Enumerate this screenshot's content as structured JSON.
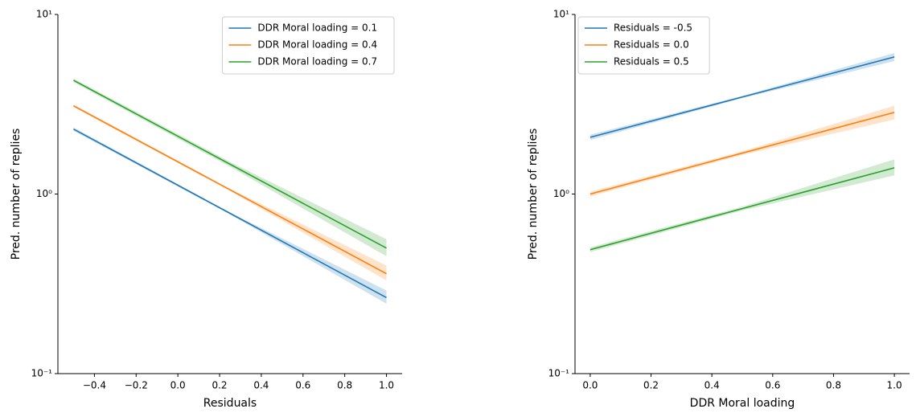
{
  "chart_data": [
    {
      "type": "line",
      "log_y": true,
      "legend": "upper right",
      "x_label": "Residuals",
      "y_label": "Pred. number of replies",
      "x": [
        -0.5,
        0.25,
        1.0
      ],
      "series": [
        {
          "name": "DDR Moral loading = 0.1",
          "color": "#1f77b4",
          "values": [
            2.3,
            0.781,
            0.265
          ],
          "lower": [
            2.25,
            0.77,
            0.245
          ],
          "upper": [
            2.35,
            0.79,
            0.29
          ]
        },
        {
          "name": "DDR Moral loading = 0.4",
          "color": "#ff7f0e",
          "values": [
            3.1,
            1.056,
            0.36
          ],
          "lower": [
            3.05,
            1.04,
            0.33
          ],
          "upper": [
            3.15,
            1.07,
            0.4
          ]
        },
        {
          "name": "DDR Moral loading = 0.7",
          "color": "#2ca02c",
          "values": [
            4.3,
            1.466,
            0.5
          ],
          "lower": [
            4.2,
            1.42,
            0.45
          ],
          "upper": [
            4.4,
            1.51,
            0.56
          ]
        }
      ],
      "xlim": [
        -0.575,
        1.075
      ],
      "xticks": [
        {
          "value": -0.4,
          "label": "−0.4"
        },
        {
          "value": -0.2,
          "label": "−0.2"
        },
        {
          "value": 0,
          "label": "0.0"
        },
        0.2,
        0.4,
        0.6,
        0.8,
        {
          "value": 1,
          "label": "1.0"
        }
      ],
      "ylim": [
        0.1,
        10
      ],
      "yticks": [
        {
          "value": 0.1,
          "label": "10⁻¹"
        },
        {
          "value": 1,
          "label": "10⁰"
        },
        {
          "value": 10,
          "label": "10¹"
        }
      ]
    },
    {
      "type": "line",
      "log_y": true,
      "legend": "upper left",
      "x_label": "DDR Moral loading",
      "y_label": "Pred. number of replies",
      "x": [
        0,
        0.5,
        1
      ],
      "series": [
        {
          "name": "Residuals = -0.5",
          "color": "#1f77b4",
          "values": [
            2.07,
            3.47,
            5.8
          ],
          "lower": [
            2.0,
            3.42,
            5.5
          ],
          "upper": [
            2.14,
            3.52,
            6.1
          ]
        },
        {
          "name": "Residuals = 0.0",
          "color": "#ff7f0e",
          "values": [
            1.0,
            1.69,
            2.85
          ],
          "lower": [
            0.97,
            1.65,
            2.6
          ],
          "upper": [
            1.03,
            1.73,
            3.1
          ]
        },
        {
          "name": "Residuals = 0.5",
          "color": "#2ca02c",
          "values": [
            0.49,
            0.83,
            1.4
          ],
          "lower": [
            0.475,
            0.81,
            1.27
          ],
          "upper": [
            0.505,
            0.85,
            1.56
          ]
        }
      ],
      "xlim": [
        -0.05,
        1.05
      ],
      "xticks": [
        {
          "value": 0,
          "label": "0.0"
        },
        0.2,
        0.4,
        0.6,
        0.8,
        {
          "value": 1,
          "label": "1.0"
        }
      ],
      "ylim": [
        0.1,
        10
      ],
      "yticks": [
        {
          "value": 0.1,
          "label": "10⁻¹"
        },
        {
          "value": 1,
          "label": "10⁰"
        },
        {
          "value": 10,
          "label": "10¹"
        }
      ]
    }
  ]
}
